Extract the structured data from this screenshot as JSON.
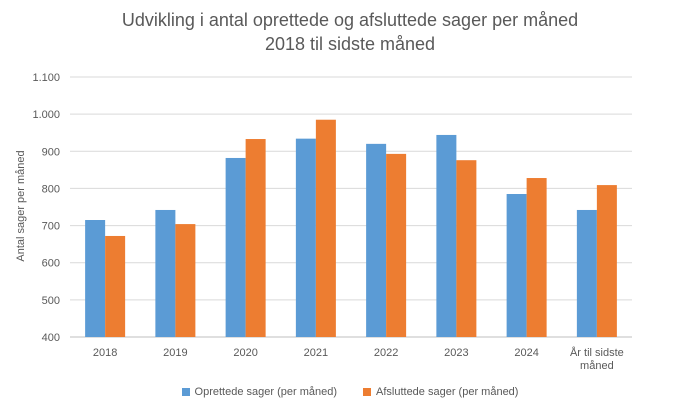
{
  "chart_data": {
    "type": "bar",
    "title_lines": [
      "Udvikling i antal oprettede og afsluttede sager per måned",
      "2018 til sidste måned"
    ],
    "ylabel": "Antal sager per måned",
    "xlabel": "",
    "ylim": [
      400,
      1100
    ],
    "yticks": [
      "400",
      "500",
      "600",
      "700",
      "800",
      "900",
      "1.000",
      "1.100"
    ],
    "ytick_values": [
      400,
      500,
      600,
      700,
      800,
      900,
      1000,
      1100
    ],
    "categories": [
      [
        "2018"
      ],
      [
        "2019"
      ],
      [
        "2020"
      ],
      [
        "2021"
      ],
      [
        "2022"
      ],
      [
        "2023"
      ],
      [
        "2024"
      ],
      [
        "År til sidste",
        "måned"
      ]
    ],
    "series": [
      {
        "name": "Oprettede sager (per måned)",
        "color": "#5B9BD5",
        "values": [
          715,
          742,
          882,
          934,
          920,
          944,
          785,
          742
        ]
      },
      {
        "name": "Afsluttede sager (per måned)",
        "color": "#ED7D31",
        "values": [
          672,
          704,
          933,
          985,
          893,
          876,
          828,
          809
        ]
      }
    ],
    "grid": true,
    "legend_position": "bottom"
  }
}
